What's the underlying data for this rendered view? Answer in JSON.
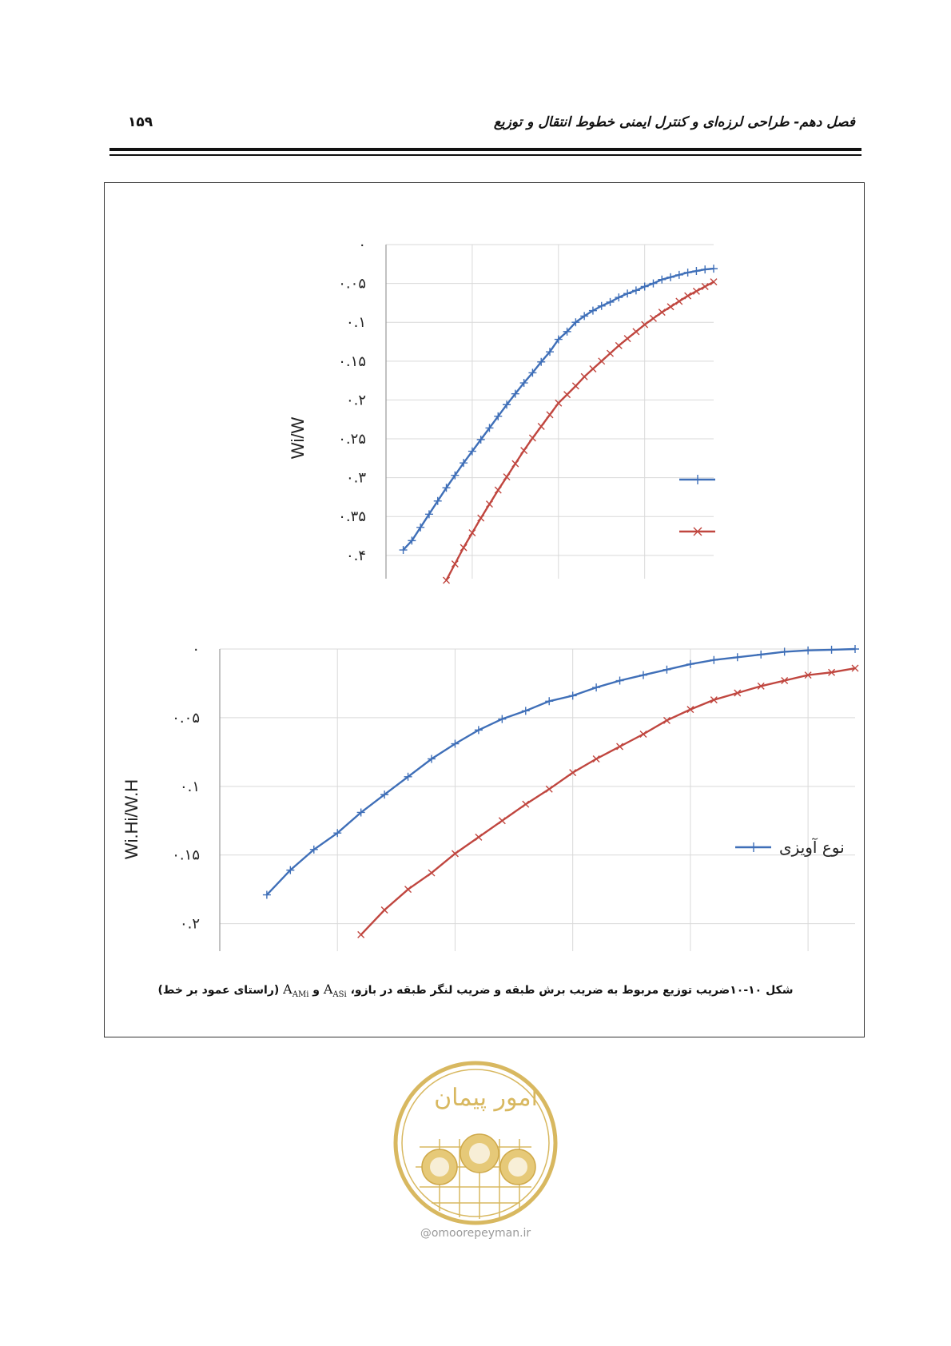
{
  "header": {
    "title": "فصل دهم- طراحی لرزه‌ای و کنترل ایمنی خطوط انتقال و توزیع",
    "page_number": "۱۵۹"
  },
  "figure": {
    "caption": "شکل ۱۰-۱۰ضریب توزیع مربوط به ضریب برش طبقه و ضریب لنگر طبقه در بازو،",
    "caption_and": "و",
    "caption_tail": "(راستای عمود بر خط)",
    "sym_asi": "A",
    "sym_asi_sub": "ASi",
    "sym_ami": "A",
    "sym_ami_sub": "AMi"
  },
  "chart_data": [
    {
      "type": "line",
      "ylabel": "Wi/W",
      "y_inverted": true,
      "ylim": [
        0,
        0.43
      ],
      "ytick_labels": [
        "۰",
        "۰.۰۵",
        "۰.۱",
        "۰.۱۵",
        "۰.۲",
        "۰.۲۵",
        "۰.۳",
        "۰.۳۵",
        "۰.۴"
      ],
      "yticks": [
        0,
        0.05,
        0.1,
        0.15,
        0.2,
        0.25,
        0.3,
        0.35,
        0.4
      ],
      "xlim": [
        0,
        3.8
      ],
      "x_gridlines": [
        1,
        2,
        3
      ],
      "grid": true,
      "series": [
        {
          "marker": "plus",
          "color": "#3f6fb8",
          "x": [
            0.2,
            0.3,
            0.4,
            0.5,
            0.6,
            0.7,
            0.8,
            0.9,
            1.0,
            1.1,
            1.2,
            1.3,
            1.4,
            1.5,
            1.6,
            1.7,
            1.8,
            1.9,
            2.0,
            2.1,
            2.2,
            2.3,
            2.4,
            2.5,
            2.6,
            2.7,
            2.8,
            2.9,
            3.0,
            3.1,
            3.2,
            3.3,
            3.4,
            3.5,
            3.6,
            3.7,
            3.8
          ],
          "y": [
            0.393,
            0.381,
            0.364,
            0.347,
            0.33,
            0.313,
            0.297,
            0.281,
            0.266,
            0.251,
            0.236,
            0.221,
            0.206,
            0.192,
            0.178,
            0.165,
            0.151,
            0.138,
            0.122,
            0.112,
            0.1,
            0.092,
            0.085,
            0.079,
            0.074,
            0.068,
            0.063,
            0.059,
            0.054,
            0.05,
            0.045,
            0.042,
            0.039,
            0.036,
            0.034,
            0.032,
            0.031
          ]
        },
        {
          "marker": "x",
          "color": "#c0463f",
          "x": [
            0.7,
            0.8,
            0.9,
            1.0,
            1.1,
            1.2,
            1.3,
            1.4,
            1.5,
            1.6,
            1.7,
            1.8,
            1.9,
            2.0,
            2.1,
            2.2,
            2.3,
            2.4,
            2.5,
            2.6,
            2.7,
            2.8,
            2.9,
            3.0,
            3.1,
            3.2,
            3.3,
            3.4,
            3.5,
            3.6,
            3.7,
            3.8
          ],
          "y": [
            0.432,
            0.411,
            0.39,
            0.371,
            0.352,
            0.334,
            0.316,
            0.299,
            0.282,
            0.265,
            0.249,
            0.234,
            0.219,
            0.204,
            0.193,
            0.182,
            0.17,
            0.16,
            0.15,
            0.14,
            0.13,
            0.121,
            0.112,
            0.103,
            0.095,
            0.087,
            0.08,
            0.073,
            0.066,
            0.06,
            0.054,
            0.048
          ]
        }
      ]
    },
    {
      "type": "line",
      "ylabel": "Wi.Hi/W.H",
      "y_inverted": true,
      "ylim": [
        0,
        0.22
      ],
      "ytick_labels": [
        "۰",
        "۰.۰۵",
        "۰.۱",
        "۰.۱۵",
        "۰.۲"
      ],
      "yticks": [
        0,
        0.05,
        0.1,
        0.15,
        0.2
      ],
      "xlim": [
        0,
        5.4
      ],
      "x_gridlines": [
        1,
        2,
        3,
        4,
        5
      ],
      "grid": true,
      "legend": {
        "position": "right",
        "entries": [
          "نوع آویزی"
        ]
      },
      "series": [
        {
          "name": "نوع آویزی",
          "marker": "plus",
          "color": "#3f6fb8",
          "x": [
            0.4,
            0.6,
            0.8,
            1.0,
            1.2,
            1.4,
            1.6,
            1.8,
            2.0,
            2.2,
            2.4,
            2.6,
            2.8,
            3.0,
            3.2,
            3.4,
            3.6,
            3.8,
            4.0,
            4.2,
            4.4,
            4.6,
            4.8,
            5.0,
            5.2,
            5.4
          ],
          "y": [
            0.179,
            0.161,
            0.146,
            0.134,
            0.119,
            0.106,
            0.093,
            0.08,
            0.069,
            0.059,
            0.051,
            0.045,
            0.038,
            0.034,
            0.028,
            0.023,
            0.019,
            0.015,
            0.011,
            0.008,
            0.006,
            0.004,
            0.002,
            0.001,
            0.0005,
            0.0
          ],
          "extra_point": [
            0.0,
            0.0
          ]
        },
        {
          "marker": "x",
          "color": "#c0463f",
          "x": [
            1.0,
            1.2,
            1.4,
            1.6,
            1.8,
            2.0,
            2.2,
            2.4,
            2.6,
            2.8,
            3.0,
            3.2,
            3.4,
            3.6,
            3.8,
            4.0,
            4.2,
            4.4,
            4.6,
            4.8,
            5.0,
            5.2,
            5.4
          ],
          "y": [
            0.223,
            0.208,
            0.19,
            0.175,
            0.163,
            0.149,
            0.137,
            0.125,
            0.113,
            0.102,
            0.09,
            0.08,
            0.071,
            0.062,
            0.052,
            0.044,
            0.037,
            0.032,
            0.027,
            0.023,
            0.019,
            0.017,
            0.014
          ]
        }
      ]
    }
  ],
  "watermark": {
    "site": "omoorepeyman.ir",
    "logo_text": "امور پیمان",
    "color": "#d8b860"
  }
}
